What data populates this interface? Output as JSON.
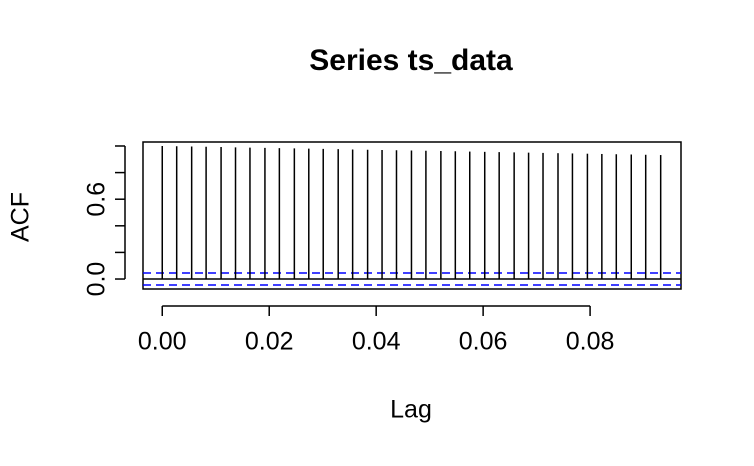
{
  "chart_data": {
    "type": "acf",
    "title": "Series  ts_data",
    "xlabel": "Lag",
    "ylabel": "ACF",
    "x": [
      0,
      0.0027,
      0.0055,
      0.0082,
      0.011,
      0.0137,
      0.0164,
      0.0192,
      0.0219,
      0.0247,
      0.0274,
      0.0301,
      0.0329,
      0.0356,
      0.0384,
      0.0411,
      0.0438,
      0.0466,
      0.0493,
      0.0521,
      0.0548,
      0.0575,
      0.0603,
      0.063,
      0.0658,
      0.0685,
      0.0712,
      0.074,
      0.0767,
      0.0795,
      0.0822,
      0.0849,
      0.0877,
      0.0904,
      0.0932
    ],
    "values": [
      1,
      0.998,
      0.996,
      0.994,
      0.992,
      0.99,
      0.988,
      0.986,
      0.984,
      0.982,
      0.98,
      0.978,
      0.976,
      0.974,
      0.972,
      0.97,
      0.968,
      0.966,
      0.964,
      0.962,
      0.96,
      0.958,
      0.956,
      0.954,
      0.952,
      0.95,
      0.948,
      0.946,
      0.944,
      0.942,
      0.94,
      0.938,
      0.936,
      0.934,
      0.932
    ],
    "color": "#000000",
    "ci": 0.045,
    "ci_color": "#0000ff",
    "xlim": [
      -0.0036,
      0.097
    ],
    "ylim": [
      -0.075,
      1.03
    ],
    "xticks": [
      {
        "value": 0,
        "label": "0.00"
      },
      {
        "value": 0.02,
        "label": "0.02"
      },
      {
        "value": 0.04,
        "label": "0.04"
      },
      {
        "value": 0.06,
        "label": "0.06"
      },
      {
        "value": 0.08,
        "label": "0.08"
      }
    ],
    "yticks": [
      {
        "value": 0,
        "label": "0.0"
      },
      {
        "value": 0.2,
        "label": null
      },
      {
        "value": 0.4,
        "label": null
      },
      {
        "value": 0.6,
        "label": "0.6"
      },
      {
        "value": 0.8,
        "label": null
      },
      {
        "value": 1,
        "label": null
      }
    ]
  }
}
